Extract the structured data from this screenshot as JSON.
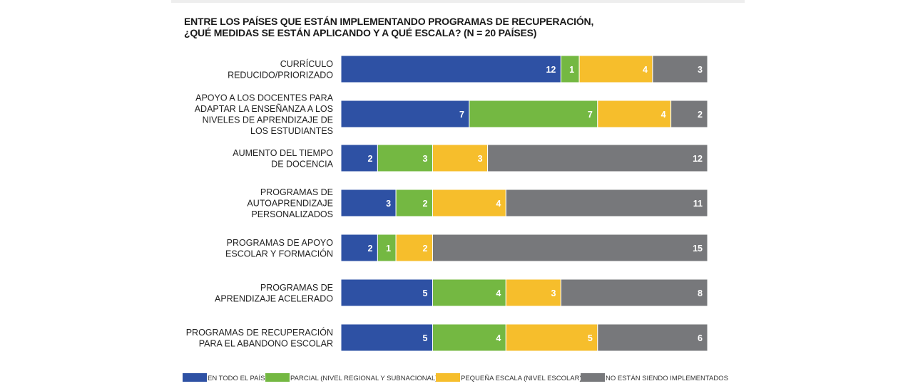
{
  "title_lines": [
    "ENTRE LOS PAÍSES QUE ESTÁN IMPLEMENTANDO PROGRAMAS DE RECUPERACIÓN,",
    "¿QUÉ MEDIDAS SE ESTÁN APLICANDO Y A QUÉ ESCALA? (N = 20 PAÍSES)"
  ],
  "colors": {
    "en_todo_el_pais": "#2E51A4",
    "parcial": "#74B842",
    "pequena_escala": "#F6BE2C",
    "no_implementados": "#77787B",
    "separator": "#ffffff"
  },
  "chart_data": {
    "type": "bar",
    "orientation": "horizontal",
    "stacked": true,
    "title": "ENTRE LOS PAÍSES QUE ESTÁN IMPLEMENTANDO PROGRAMAS DE RECUPERACIÓN, ¿QUÉ MEDIDAS SE ESTÁN APLICANDO Y A QUÉ ESCALA? (N = 20 PAÍSES)",
    "categories": [
      [
        "CURRÍCULO",
        "REDUCIDO/PRIORIZADO"
      ],
      [
        "APOYO A LOS DOCENTES PARA",
        "ADAPTAR LA ENSEÑANZA A LOS",
        "NIVELES DE APRENDIZAJE DE",
        "LOS ESTUDIANTES"
      ],
      [
        "AUMENTO DEL TIEMPO",
        "DE DOCENCIA"
      ],
      [
        "PROGRAMAS DE",
        "AUTOAPRENDIZAJE",
        "PERSONALIZADOS"
      ],
      [
        "PROGRAMAS DE APOYO",
        "ESCOLAR Y FORMACIÓN"
      ],
      [
        "PROGRAMAS DE",
        "APRENDIZAJE ACELERADO"
      ],
      [
        "PROGRAMAS DE RECUPERACIÓN",
        "PARA EL ABANDONO ESCOLAR"
      ]
    ],
    "series": [
      {
        "name": "EN TODO EL PAÍS",
        "color": "#2E51A4",
        "values": [
          12,
          7,
          2,
          3,
          2,
          5,
          5
        ]
      },
      {
        "name": "PARCIAL (NIVEL REGIONAL Y SUBNACIONAL)",
        "color": "#74B842",
        "values": [
          1,
          7,
          3,
          2,
          1,
          4,
          4
        ]
      },
      {
        "name": "PEQUEÑA ESCALA (NIVEL ESCOLAR)",
        "color": "#F6BE2C",
        "values": [
          4,
          4,
          3,
          4,
          2,
          3,
          5
        ]
      },
      {
        "name": "NO ESTÁN SIENDO IMPLEMENTADOS",
        "color": "#77787B",
        "values": [
          3,
          2,
          12,
          11,
          15,
          8,
          6
        ]
      }
    ],
    "xlim": [
      0,
      20
    ],
    "grid": false,
    "legend_position": "bottom"
  }
}
